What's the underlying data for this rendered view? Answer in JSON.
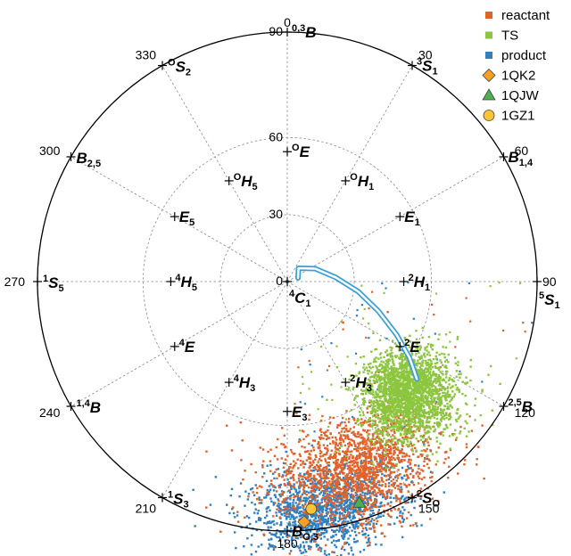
{
  "chart_data": {
    "type": "scatter",
    "projection": "polar (Cremer-Pople puckering sphere, stereographic)",
    "angular_axis": {
      "quantity": "phi",
      "direction": "clockwise",
      "zero": "top",
      "ticks": [
        {
          "value": 0,
          "label": "0"
        },
        {
          "value": 30,
          "label": "30"
        },
        {
          "value": 60,
          "label": "60"
        },
        {
          "value": 90,
          "label": "90"
        },
        {
          "value": 120,
          "label": "120"
        },
        {
          "value": 150,
          "label": "150"
        },
        {
          "value": 180,
          "label": "180"
        },
        {
          "value": 210,
          "label": "210"
        },
        {
          "value": 240,
          "label": "240"
        },
        {
          "value": 270,
          "label": "270"
        },
        {
          "value": 300,
          "label": "300"
        },
        {
          "value": 330,
          "label": "330"
        }
      ]
    },
    "radial_axis": {
      "quantity": "theta",
      "ticks": [
        {
          "value": 0,
          "label": "0"
        },
        {
          "value": 30,
          "label": "30"
        },
        {
          "value": 60,
          "label": "60"
        },
        {
          "value": 90,
          "label": "90"
        }
      ],
      "range": [
        0,
        90
      ]
    },
    "grid": true,
    "legend_position": "top-right",
    "conformers": [
      {
        "sup": "4",
        "main": "C",
        "sub": "1",
        "sup_pos": "pre",
        "theta": 0,
        "phi": 0
      },
      {
        "sup": "0,3",
        "main": "B",
        "sub": "",
        "sup_pos": "pre",
        "theta": 90,
        "phi": 0
      },
      {
        "sup": "3",
        "main": "S",
        "sub": "1",
        "sup_pos": "pre",
        "theta": 90,
        "phi": 30
      },
      {
        "sup": "",
        "main": "B",
        "sub": "1,4",
        "sup_pos": "pre",
        "theta": 90,
        "phi": 60
      },
      {
        "sup": "5",
        "main": "S",
        "sub": "1",
        "sup_pos": "pre",
        "theta": 90,
        "phi": 90
      },
      {
        "sup": "2,5",
        "main": "B",
        "sub": "",
        "sup_pos": "pre",
        "theta": 90,
        "phi": 120
      },
      {
        "sup": "2",
        "main": "S",
        "sub": "O",
        "sup_pos": "pre",
        "theta": 90,
        "phi": 150
      },
      {
        "sup": "",
        "main": "B",
        "sub": "O,3",
        "sup_pos": "pre",
        "theta": 90,
        "phi": 180
      },
      {
        "sup": "1",
        "main": "S",
        "sub": "3",
        "sup_pos": "pre",
        "theta": 90,
        "phi": 210
      },
      {
        "sup": "1,4",
        "main": "B",
        "sub": "",
        "sup_pos": "pre",
        "theta": 90,
        "phi": 240
      },
      {
        "sup": "1",
        "main": "S",
        "sub": "5",
        "sup_pos": "pre",
        "theta": 90,
        "phi": 270
      },
      {
        "sup": "",
        "main": "B",
        "sub": "2,5",
        "sup_pos": "pre",
        "theta": 90,
        "phi": 300
      },
      {
        "sup": "O",
        "main": "S",
        "sub": "2",
        "sup_pos": "pre",
        "theta": 90,
        "phi": 330
      },
      {
        "sup": "O",
        "main": "E",
        "sub": "",
        "sup_pos": "pre",
        "theta": 55,
        "phi": 0
      },
      {
        "sup": "O",
        "main": "H",
        "sub": "1",
        "sup_pos": "pre",
        "theta": 50,
        "phi": 30
      },
      {
        "sup": "",
        "main": "E",
        "sub": "1",
        "sup_pos": "pre",
        "theta": 55,
        "phi": 60
      },
      {
        "sup": "2",
        "main": "H",
        "sub": "1",
        "sup_pos": "pre",
        "theta": 50,
        "phi": 90
      },
      {
        "sup": "2",
        "main": "E",
        "sub": "",
        "sup_pos": "pre",
        "theta": 55,
        "phi": 120
      },
      {
        "sup": "2",
        "main": "H",
        "sub": "3",
        "sup_pos": "pre",
        "theta": 50,
        "phi": 150
      },
      {
        "sup": "",
        "main": "E",
        "sub": "3",
        "sup_pos": "pre",
        "theta": 55,
        "phi": 180
      },
      {
        "sup": "4",
        "main": "H",
        "sub": "3",
        "sup_pos": "pre",
        "theta": 50,
        "phi": 210
      },
      {
        "sup": "4",
        "main": "E",
        "sub": "",
        "sup_pos": "pre",
        "theta": 55,
        "phi": 240
      },
      {
        "sup": "4",
        "main": "H",
        "sub": "5",
        "sup_pos": "pre",
        "theta": 50,
        "phi": 270
      },
      {
        "sup": "",
        "main": "E",
        "sub": "5",
        "sup_pos": "pre",
        "theta": 55,
        "phi": 300
      },
      {
        "sup": "O",
        "main": "H",
        "sub": "5",
        "sup_pos": "pre",
        "theta": 50,
        "phi": 330
      }
    ],
    "series": [
      {
        "name": "reactant",
        "marker": "square",
        "color": "#e2622a",
        "distribution": {
          "theta_center": 78,
          "phi_center": 160,
          "theta_spread": 7,
          "phi_spread": 12,
          "count": 1700
        }
      },
      {
        "name": "TS",
        "marker": "square",
        "color": "#8cc63f",
        "distribution": {
          "theta_center": 67,
          "phi_center": 133,
          "theta_spread": 7,
          "phi_spread": 8,
          "count": 2200
        }
      },
      {
        "name": "product",
        "marker": "square",
        "color": "#2f7fc1",
        "distribution": {
          "theta_center": 86,
          "phi_center": 170,
          "theta_spread": 5,
          "phi_spread": 9,
          "count": 1400
        }
      },
      {
        "name": "1QK2",
        "marker": "diamond",
        "color": "#f7a021",
        "points": [
          {
            "theta": 88,
            "phi": 176
          }
        ]
      },
      {
        "name": "1QJW",
        "marker": "triangle",
        "color": "#4caf50",
        "points": [
          {
            "theta": 86,
            "phi": 162
          }
        ]
      },
      {
        "name": "1GZ1",
        "marker": "circle",
        "color": "#f7c534",
        "points": [
          {
            "theta": 85,
            "phi": 174
          }
        ]
      }
    ],
    "trajectory": {
      "color": "#3aa0d8",
      "points": [
        {
          "theta": 8,
          "phi": 40
        },
        {
          "theta": 14,
          "phi": 65
        },
        {
          "theta": 22,
          "phi": 85
        },
        {
          "theta": 32,
          "phi": 98
        },
        {
          "theta": 42,
          "phi": 108
        },
        {
          "theta": 52,
          "phi": 116
        },
        {
          "theta": 60,
          "phi": 122
        },
        {
          "theta": 66,
          "phi": 127
        }
      ]
    }
  }
}
